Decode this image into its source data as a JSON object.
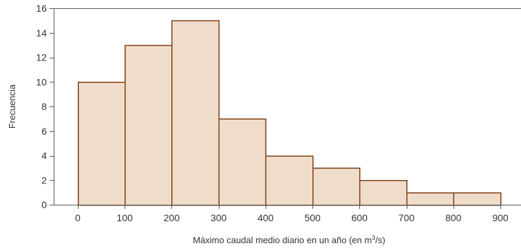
{
  "chart_data": {
    "type": "bar",
    "subtype": "histogram",
    "bins": [
      {
        "from": 0,
        "to": 100,
        "value": 10
      },
      {
        "from": 100,
        "to": 200,
        "value": 13
      },
      {
        "from": 200,
        "to": 300,
        "value": 15
      },
      {
        "from": 300,
        "to": 400,
        "value": 7
      },
      {
        "from": 400,
        "to": 500,
        "value": 4
      },
      {
        "from": 500,
        "to": 600,
        "value": 3
      },
      {
        "from": 600,
        "to": 700,
        "value": 2
      },
      {
        "from": 700,
        "to": 800,
        "value": 1
      },
      {
        "from": 800,
        "to": 900,
        "value": 1
      }
    ],
    "x_ticks": [
      "0",
      "100",
      "200",
      "300",
      "400",
      "500",
      "600",
      "700",
      "800",
      "900"
    ],
    "y_ticks": [
      "0",
      "2",
      "4",
      "6",
      "8",
      "10",
      "12",
      "14",
      "16"
    ],
    "xlim": [
      0,
      900
    ],
    "ylim": [
      0,
      16
    ],
    "ylabel": "Frecuencia",
    "xlabel_main": "Máximo caudal medio diario en un año (en m",
    "xlabel_sup": "3",
    "xlabel_end": "/s)",
    "grid": false,
    "colors": {
      "bar_fill": "#f0dccb",
      "bar_stroke": "#7a3f12",
      "axis": "#555555"
    }
  }
}
